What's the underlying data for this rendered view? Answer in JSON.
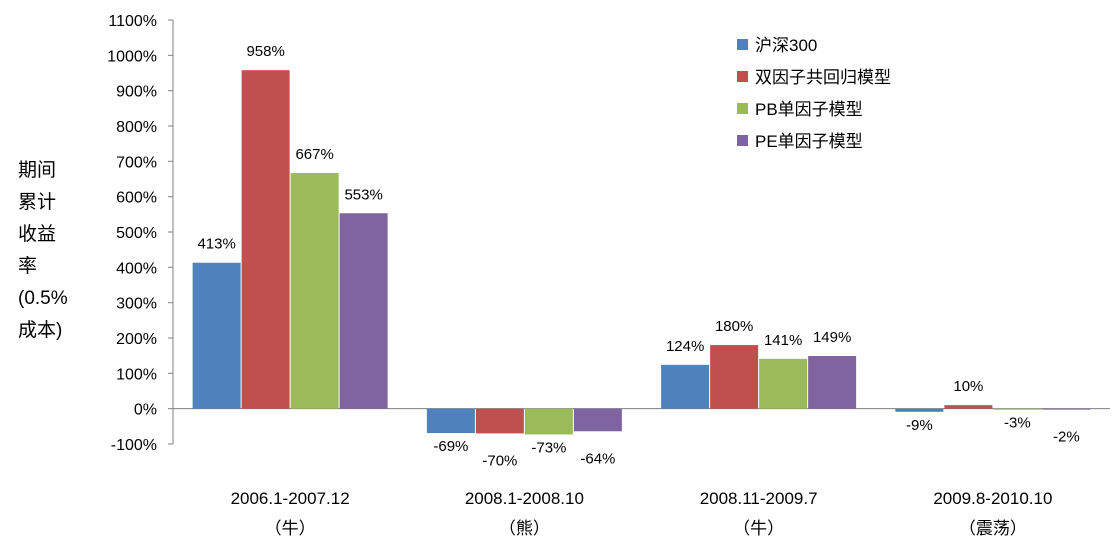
{
  "chart_data": {
    "type": "bar",
    "ylabel_lines": [
      "期间",
      "累计",
      "收益",
      "率",
      "(0.5%",
      "成本)"
    ],
    "categories": [
      [
        "2006.1-2007.12",
        "（牛）"
      ],
      [
        "2008.1-2008.10",
        "（熊）"
      ],
      [
        "2008.11-2009.7",
        "（牛）"
      ],
      [
        "2009.8-2010.10",
        "（震荡）"
      ]
    ],
    "y_ticks": [
      "-100%",
      "0%",
      "100%",
      "200%",
      "300%",
      "400%",
      "500%",
      "600%",
      "700%",
      "800%",
      "900%",
      "1000%",
      "1100%"
    ],
    "ylim": [
      -100,
      1100
    ],
    "legend_position": "top-right",
    "series": [
      {
        "name": "沪深300",
        "color": "#4F81BD",
        "values": [
          413,
          -69,
          124,
          -9
        ],
        "labels": [
          "413%",
          "-69%",
          "124%",
          "-9%"
        ]
      },
      {
        "name": "双因子共回归模型",
        "color": "#C0504D",
        "values": [
          958,
          -70,
          180,
          10
        ],
        "labels": [
          "958%",
          "-70%",
          "180%",
          "10%"
        ]
      },
      {
        "name": "PB单因子模型",
        "color": "#9BBB59",
        "values": [
          667,
          -73,
          141,
          -3
        ],
        "labels": [
          "667%",
          "-73%",
          "141%",
          "-3%"
        ]
      },
      {
        "name": "PE单因子模型",
        "color": "#8064A2",
        "values": [
          553,
          -64,
          149,
          -2
        ],
        "labels": [
          "553%",
          "-64%",
          "149%",
          "-2%"
        ]
      }
    ]
  }
}
